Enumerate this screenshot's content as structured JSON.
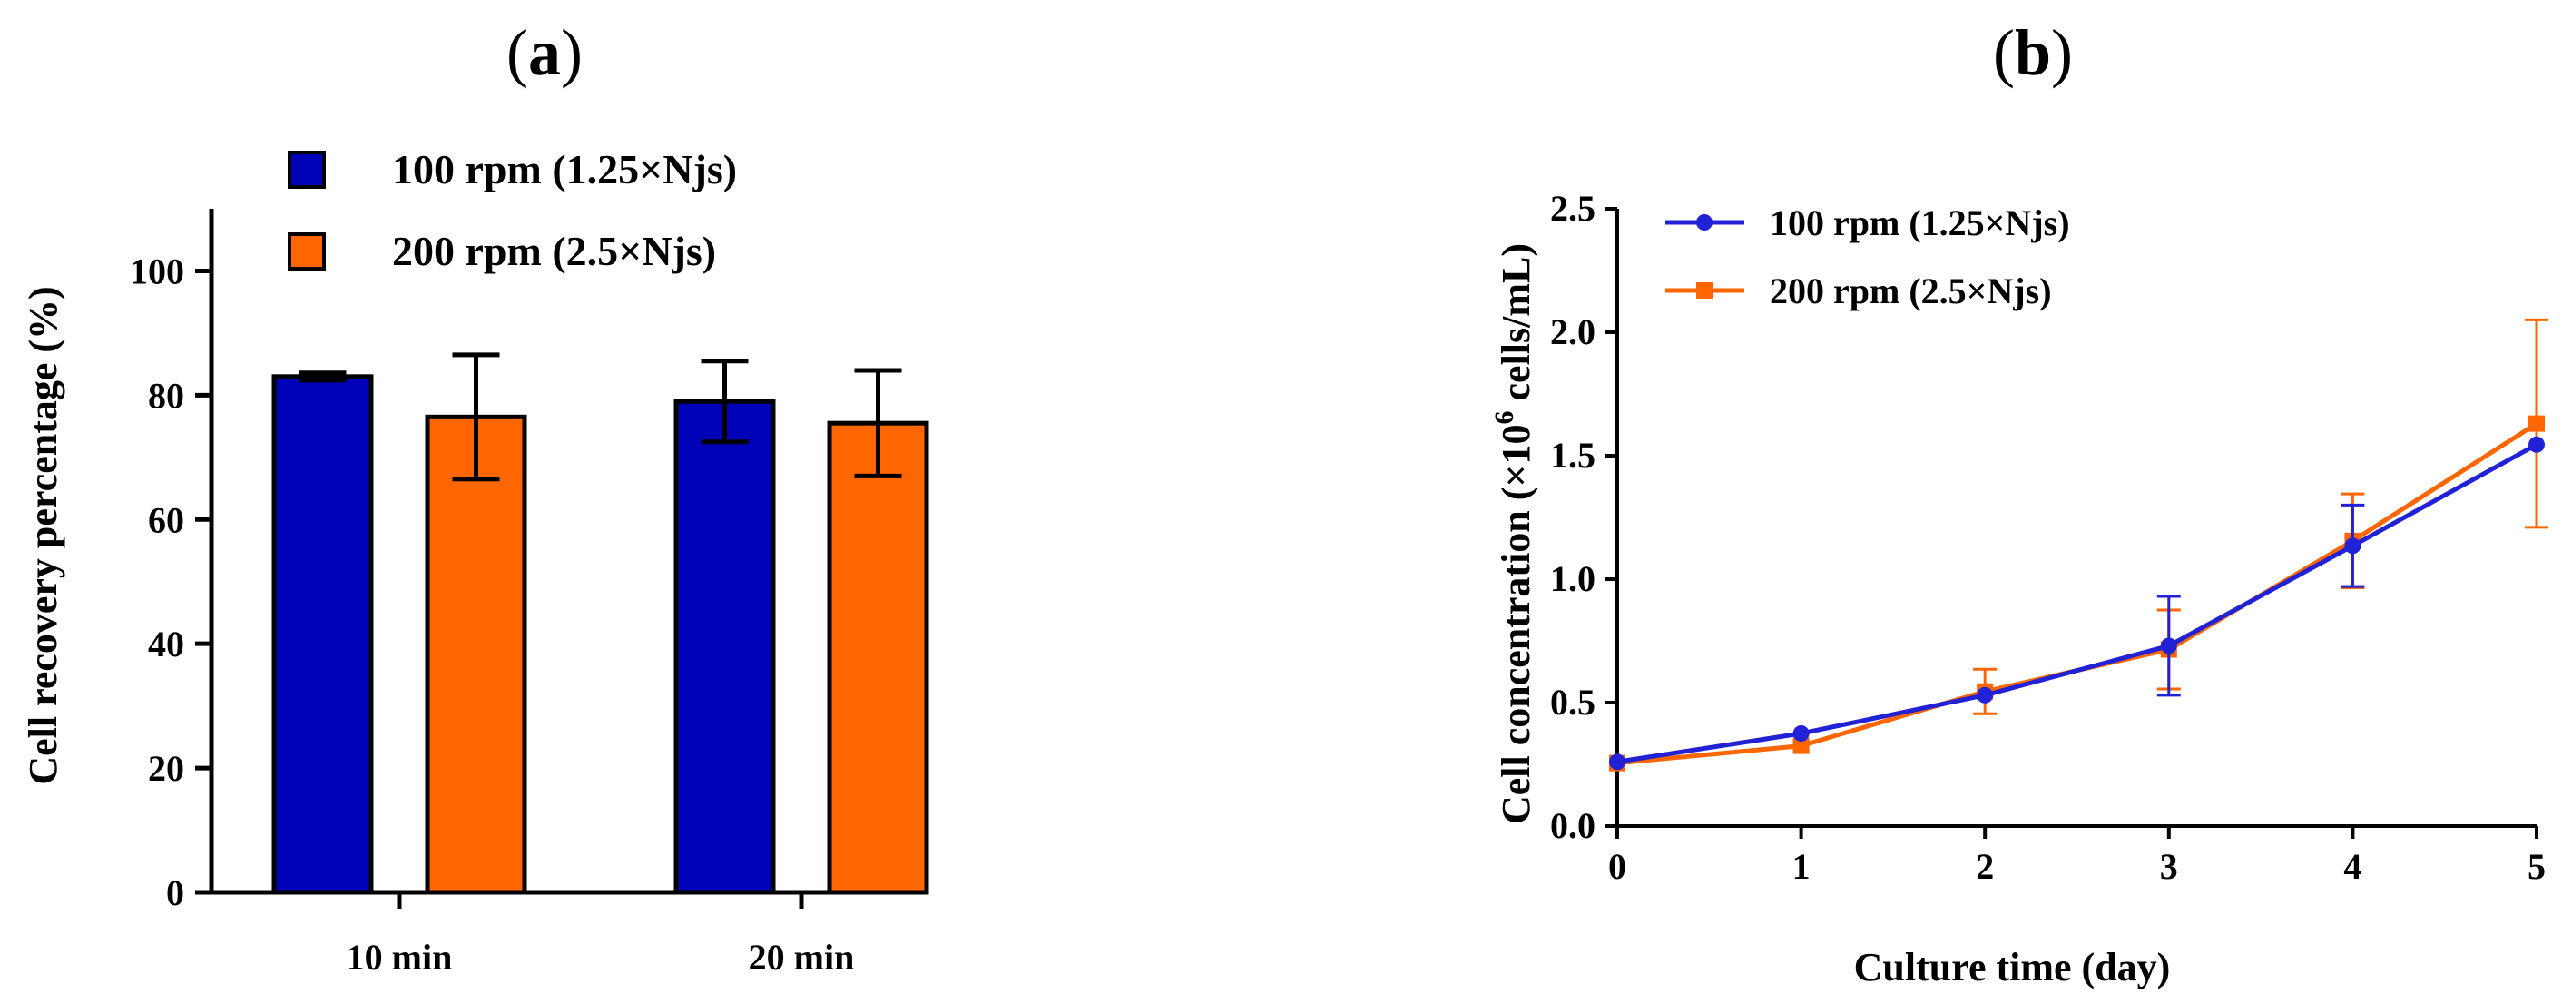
{
  "panels": {
    "a_label": "a",
    "b_label": "b"
  },
  "chart_data": [
    {
      "type": "bar",
      "panel": "a",
      "title": "",
      "xlabel": "",
      "ylabel": "Cell recovery percentage (%)",
      "categories": [
        "10 min",
        "20 min"
      ],
      "ylim": [
        0,
        110
      ],
      "yticks": [
        0,
        20,
        40,
        60,
        80,
        100
      ],
      "legend_position": "top-left",
      "series": [
        {
          "name": "100 rpm (1.25×Njs)",
          "color": "#0000b8",
          "values": [
            83,
            79
          ],
          "errors": [
            0.6,
            6.5
          ]
        },
        {
          "name": "200 rpm (2.5×Njs)",
          "color": "#ff6600",
          "values": [
            76.5,
            75.5
          ],
          "errors": [
            10,
            8.5
          ]
        }
      ]
    },
    {
      "type": "line",
      "panel": "b",
      "title": "",
      "xlabel": "Culture time (day)",
      "ylabel_main": "Cell concentration  (×10",
      "ylabel_sup": "6",
      "ylabel_tail": " cells/mL)",
      "xlim": [
        0,
        5
      ],
      "ylim": [
        0,
        2.5
      ],
      "xticks": [
        0,
        1,
        2,
        3,
        4,
        5
      ],
      "yticks": [
        "0.0",
        "0.5",
        "1.0",
        "1.5",
        "2.0",
        "2.5"
      ],
      "legend_position": "top-left",
      "series": [
        {
          "name": "100 rpm (1.25×Njs)",
          "color": "#2121d6",
          "marker": "circle",
          "x": [
            0,
            1,
            2,
            3,
            4,
            5
          ],
          "y": [
            0.26,
            0.375,
            0.53,
            0.73,
            1.135,
            1.545
          ],
          "errors": [
            0.01,
            0.01,
            0.01,
            0.2,
            0.165,
            0.01
          ]
        },
        {
          "name": "200 rpm (2.5×Njs)",
          "color": "#ff6600",
          "marker": "square",
          "x": [
            0,
            1,
            2,
            3,
            4,
            5
          ],
          "y": [
            0.255,
            0.325,
            0.545,
            0.715,
            1.155,
            1.63
          ],
          "errors": [
            0.01,
            0.01,
            0.09,
            0.16,
            0.19,
            0.42
          ]
        }
      ]
    }
  ]
}
